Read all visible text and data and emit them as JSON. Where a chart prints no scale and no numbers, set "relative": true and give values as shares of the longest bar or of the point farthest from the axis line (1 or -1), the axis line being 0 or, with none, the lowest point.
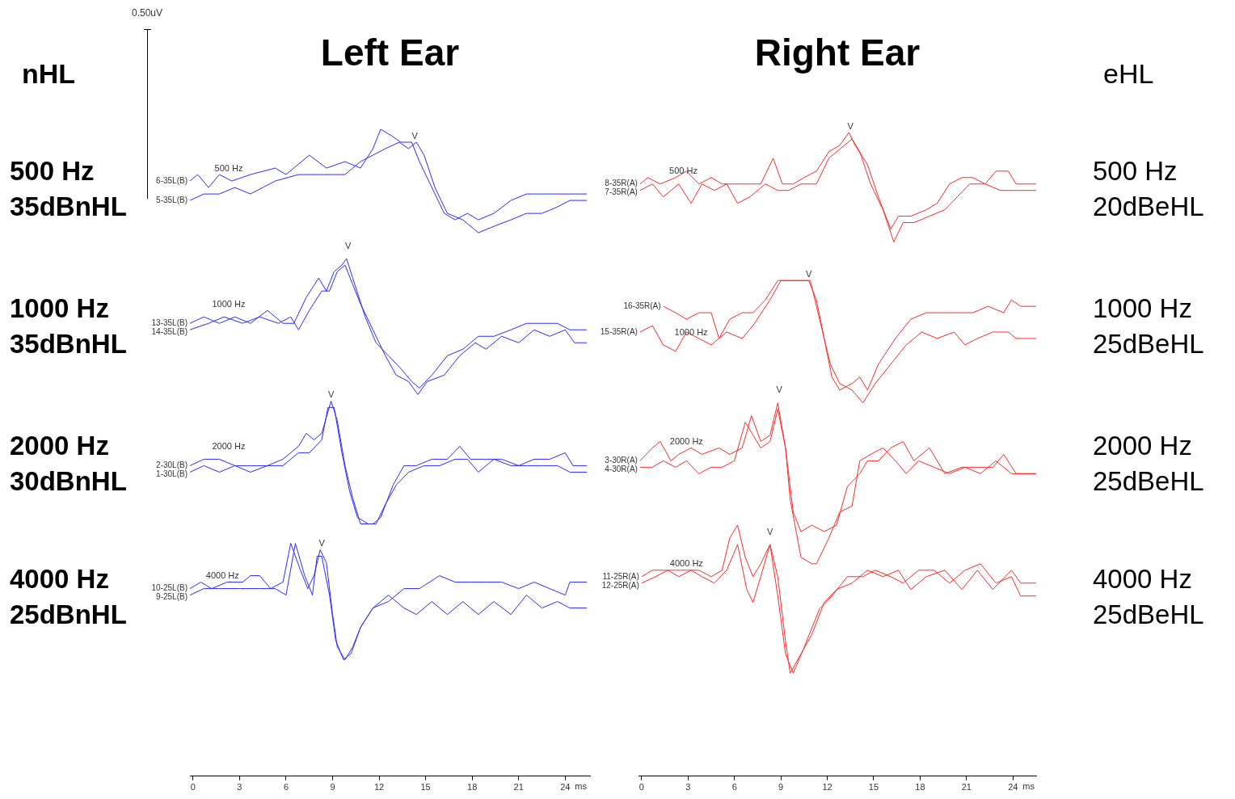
{
  "chart_data": [
    {
      "type": "line",
      "title": "Left Ear",
      "xlabel": "ms",
      "relative": true,
      "marker": "none",
      "xlim": [
        -0.2,
        25.6
      ],
      "xticks": [
        0,
        3,
        6,
        9,
        12,
        15,
        18,
        21,
        24
      ],
      "annotations": [
        "0.50uV",
        "nHL",
        "500 Hz",
        "35dBnHL",
        "1000 Hz",
        "35dBnHL",
        "2000 Hz",
        "30dBnHL",
        "4000 Hz",
        "25dBnHL",
        "500 Hz",
        "V",
        "1000 Hz",
        "V",
        "2000 Hz",
        "V",
        "4000 Hz",
        "V"
      ],
      "series": [
        {
          "name": "6-35L(B)",
          "color": "#2b2bff",
          "x": [
            -0.2,
            0.3,
            1.0,
            1.7,
            2.5,
            3.7,
            5.3,
            6.0,
            7.5,
            8.6,
            9.8,
            10.8,
            11.6,
            12.1,
            12.8,
            13.4,
            14.1,
            14.6,
            15.4,
            16.2,
            16.9,
            17.7,
            18.4,
            19.4,
            20.5,
            21.5,
            22.5,
            23.5,
            24.3,
            25.4
          ],
          "values": [
            0.92,
            0.93,
            0.91,
            0.93,
            0.92,
            0.93,
            0.94,
            0.93,
            0.96,
            0.94,
            0.95,
            0.94,
            0.97,
            1.0,
            0.99,
            0.98,
            0.98,
            0.95,
            0.91,
            0.87,
            0.86,
            0.87,
            0.86,
            0.87,
            0.89,
            0.9,
            0.9,
            0.9,
            0.9,
            0.9
          ]
        },
        {
          "name": "5-35L(B)",
          "color": "#2b2bff",
          "x": [
            -0.2,
            0.7,
            1.7,
            2.7,
            3.7,
            5.3,
            6.8,
            8.1,
            9.1,
            9.8,
            10.8,
            11.6,
            12.4,
            13.3,
            13.9,
            14.4,
            14.9,
            15.6,
            16.4,
            17.4,
            18.4,
            19.4,
            20.5,
            21.5,
            22.5,
            23.5,
            24.3,
            25.4
          ],
          "values": [
            0.89,
            0.9,
            0.9,
            0.91,
            0.9,
            0.92,
            0.93,
            0.93,
            0.93,
            0.93,
            0.95,
            0.96,
            0.97,
            0.98,
            0.97,
            0.98,
            0.96,
            0.91,
            0.87,
            0.86,
            0.84,
            0.85,
            0.86,
            0.87,
            0.87,
            0.88,
            0.89,
            0.89
          ]
        },
        {
          "name": "13-35L(B)",
          "color": "#2b2bff",
          "x": [
            -0.2,
            0.7,
            1.7,
            2.7,
            3.7,
            4.8,
            5.8,
            6.5,
            7.3,
            8.1,
            8.6,
            9.1,
            9.6,
            9.9,
            10.3,
            11.1,
            11.8,
            12.6,
            13.4,
            14.1,
            14.6,
            15.4,
            16.4,
            17.4,
            18.4,
            19.4,
            20.5,
            21.5,
            22.5,
            23.5,
            24.3,
            25.4
          ],
          "values": [
            0.7,
            0.71,
            0.7,
            0.71,
            0.7,
            0.72,
            0.7,
            0.7,
            0.74,
            0.77,
            0.75,
            0.78,
            0.79,
            0.8,
            0.77,
            0.71,
            0.67,
            0.65,
            0.63,
            0.61,
            0.6,
            0.62,
            0.65,
            0.66,
            0.68,
            0.68,
            0.69,
            0.7,
            0.7,
            0.7,
            0.69,
            0.69
          ]
        },
        {
          "name": "14-35L(B)",
          "color": "#2b2bff",
          "x": [
            -0.2,
            1.0,
            2.0,
            3.2,
            4.3,
            5.5,
            6.3,
            6.8,
            7.5,
            8.3,
            8.8,
            9.3,
            9.8,
            10.3,
            10.8,
            11.6,
            12.4,
            13.1,
            13.9,
            14.5,
            15.1,
            16.2,
            17.2,
            18.2,
            18.9,
            19.9,
            21.0,
            22.0,
            23.0,
            24.0,
            24.6,
            25.4
          ],
          "values": [
            0.69,
            0.7,
            0.71,
            0.7,
            0.71,
            0.7,
            0.71,
            0.69,
            0.72,
            0.75,
            0.75,
            0.78,
            0.79,
            0.76,
            0.73,
            0.69,
            0.65,
            0.62,
            0.61,
            0.59,
            0.61,
            0.62,
            0.65,
            0.67,
            0.66,
            0.68,
            0.67,
            0.69,
            0.68,
            0.69,
            0.67,
            0.67
          ]
        },
        {
          "name": "2-30L(B)",
          "color": "#2b2bff",
          "x": [
            -0.2,
            0.7,
            1.7,
            2.7,
            3.7,
            4.8,
            5.8,
            6.8,
            7.3,
            7.8,
            8.3,
            8.9,
            9.3,
            9.8,
            10.3,
            10.8,
            11.6,
            12.1,
            12.9,
            13.6,
            14.4,
            15.4,
            16.4,
            17.2,
            17.9,
            18.9,
            19.9,
            21.0,
            22.0,
            23.0,
            24.0,
            24.5,
            25.4
          ],
          "values": [
            0.48,
            0.49,
            0.49,
            0.48,
            0.48,
            0.48,
            0.49,
            0.51,
            0.53,
            0.52,
            0.53,
            0.58,
            0.55,
            0.48,
            0.43,
            0.39,
            0.39,
            0.4,
            0.45,
            0.48,
            0.48,
            0.49,
            0.49,
            0.51,
            0.49,
            0.49,
            0.49,
            0.48,
            0.49,
            0.49,
            0.5,
            0.48,
            0.48
          ]
        },
        {
          "name": "1-30L(B)",
          "color": "#2b2bff",
          "x": [
            -0.2,
            0.7,
            1.7,
            2.7,
            3.7,
            4.8,
            5.8,
            6.8,
            7.5,
            8.3,
            8.7,
            9.1,
            9.6,
            10.1,
            10.6,
            11.3,
            11.8,
            12.4,
            13.1,
            13.9,
            14.9,
            15.9,
            16.9,
            17.7,
            18.4,
            19.4,
            20.5,
            21.5,
            22.5,
            23.5,
            24.3,
            25.4
          ],
          "values": [
            0.47,
            0.48,
            0.47,
            0.48,
            0.47,
            0.48,
            0.48,
            0.5,
            0.5,
            0.52,
            0.57,
            0.57,
            0.5,
            0.44,
            0.4,
            0.39,
            0.39,
            0.42,
            0.45,
            0.47,
            0.48,
            0.48,
            0.49,
            0.49,
            0.47,
            0.49,
            0.48,
            0.48,
            0.48,
            0.48,
            0.47,
            0.47
          ]
        },
        {
          "name": "10-25L(B)",
          "color": "#2b2bff",
          "x": [
            -0.2,
            0.5,
            1.2,
            2.2,
            3.2,
            3.7,
            4.3,
            5.0,
            5.8,
            6.3,
            6.9,
            7.4,
            7.8,
            8.2,
            8.6,
            9.0,
            9.3,
            9.8,
            10.3,
            10.8,
            11.6,
            12.6,
            13.6,
            14.6,
            15.9,
            16.9,
            17.9,
            18.9,
            19.9,
            21.0,
            22.0,
            23.0,
            24.0,
            24.3,
            25.4
          ],
          "values": [
            0.29,
            0.3,
            0.29,
            0.3,
            0.3,
            0.31,
            0.31,
            0.29,
            0.3,
            0.36,
            0.32,
            0.29,
            0.31,
            0.35,
            0.33,
            0.25,
            0.2,
            0.18,
            0.2,
            0.23,
            0.26,
            0.27,
            0.29,
            0.29,
            0.31,
            0.3,
            0.3,
            0.3,
            0.3,
            0.29,
            0.3,
            0.29,
            0.28,
            0.3,
            0.3
          ]
        },
        {
          "name": "9-25L(B)",
          "color": "#2b2bff",
          "x": [
            -0.2,
            0.7,
            1.7,
            3.0,
            4.3,
            5.3,
            6.0,
            6.6,
            7.2,
            7.7,
            8.0,
            8.3,
            8.8,
            9.2,
            9.7,
            10.2,
            10.8,
            11.6,
            12.6,
            13.6,
            14.4,
            15.4,
            16.4,
            17.4,
            18.4,
            19.4,
            20.5,
            21.5,
            22.5,
            23.5,
            24.3,
            25.4
          ],
          "values": [
            0.28,
            0.29,
            0.29,
            0.29,
            0.29,
            0.29,
            0.28,
            0.36,
            0.31,
            0.28,
            0.34,
            0.34,
            0.28,
            0.21,
            0.18,
            0.19,
            0.23,
            0.26,
            0.28,
            0.26,
            0.25,
            0.27,
            0.25,
            0.27,
            0.25,
            0.27,
            0.25,
            0.28,
            0.26,
            0.27,
            0.26,
            0.26
          ]
        }
      ]
    },
    {
      "type": "line",
      "title": "Right Ear",
      "xlabel": "ms",
      "relative": true,
      "marker": "none",
      "xlim": [
        -0.2,
        25.5
      ],
      "xticks": [
        0,
        3,
        6,
        9,
        12,
        15,
        18,
        21,
        24
      ],
      "annotations": [
        "eHL",
        "500 Hz",
        "20dBeHL",
        "1000 Hz",
        "25dBeHL",
        "2000 Hz",
        "25dBeHL",
        "4000 Hz",
        "25dBeHL",
        "500 Hz",
        "V",
        "1000 Hz",
        "V",
        "2000 Hz",
        "V",
        "4000 Hz",
        "V"
      ],
      "series": [
        {
          "name": "8-35R(A)",
          "color": "#ff2a2a",
          "x": [
            -0.1,
            0.4,
            1.2,
            2.2,
            2.9,
            3.7,
            4.5,
            5.2,
            6.0,
            6.7,
            7.7,
            8.5,
            9.1,
            9.8,
            10.5,
            11.3,
            12.1,
            12.8,
            13.4,
            13.8,
            14.6,
            15.3,
            16.1,
            16.6,
            17.4,
            18.4,
            19.1,
            19.9,
            20.7,
            21.4,
            22.2,
            22.9,
            23.7,
            24.2,
            25.5
          ],
          "values": [
            0.92,
            0.93,
            0.92,
            0.93,
            0.94,
            0.92,
            0.93,
            0.92,
            0.92,
            0.92,
            0.92,
            0.96,
            0.92,
            0.92,
            0.93,
            0.94,
            0.97,
            0.98,
            1.0,
            0.98,
            0.95,
            0.9,
            0.85,
            0.87,
            0.87,
            0.88,
            0.89,
            0.92,
            0.93,
            0.93,
            0.92,
            0.94,
            0.94,
            0.92,
            0.92
          ]
        },
        {
          "name": "7-35R(A)",
          "color": "#ff2a2a",
          "x": [
            -0.1,
            0.7,
            1.4,
            2.4,
            3.2,
            3.9,
            4.7,
            5.5,
            6.2,
            7.0,
            8.0,
            8.8,
            9.5,
            10.3,
            11.3,
            12.1,
            13.1,
            13.6,
            14.1,
            14.8,
            15.6,
            16.3,
            16.9,
            17.6,
            18.6,
            19.6,
            20.4,
            21.2,
            22.2,
            23.2,
            23.9,
            24.5,
            25.5
          ],
          "values": [
            0.91,
            0.92,
            0.9,
            0.92,
            0.89,
            0.92,
            0.91,
            0.92,
            0.89,
            0.9,
            0.92,
            0.91,
            0.91,
            0.92,
            0.92,
            0.96,
            0.98,
            0.99,
            0.97,
            0.92,
            0.88,
            0.83,
            0.86,
            0.86,
            0.87,
            0.88,
            0.9,
            0.92,
            0.92,
            0.91,
            0.91,
            0.91,
            0.91
          ]
        },
        {
          "name": "16-35R(A)",
          "color": "#ff2a2a",
          "x": [
            1.4,
            2.2,
            2.9,
            3.7,
            4.5,
            5.0,
            5.7,
            6.5,
            7.2,
            8.0,
            8.8,
            9.3,
            10.0,
            10.8,
            11.3,
            11.8,
            12.3,
            12.8,
            13.6,
            14.1,
            14.6,
            15.3,
            16.4,
            17.4,
            18.4,
            19.4,
            20.4,
            21.4,
            22.4,
            23.4,
            23.9,
            24.5,
            25.5
          ],
          "values": [
            0.73,
            0.72,
            0.71,
            0.72,
            0.72,
            0.68,
            0.71,
            0.72,
            0.72,
            0.74,
            0.77,
            0.77,
            0.77,
            0.77,
            0.74,
            0.68,
            0.62,
            0.6,
            0.61,
            0.62,
            0.6,
            0.64,
            0.68,
            0.71,
            0.72,
            0.72,
            0.72,
            0.72,
            0.73,
            0.72,
            0.74,
            0.73,
            0.73
          ]
        },
        {
          "name": "15-35R(A)",
          "color": "#ff2a2a",
          "x": [
            -0.1,
            0.7,
            1.4,
            2.2,
            2.9,
            3.7,
            4.5,
            5.5,
            6.5,
            7.2,
            8.3,
            9.0,
            9.8,
            10.5,
            10.9,
            11.5,
            12.2,
            12.8,
            13.6,
            14.3,
            15.1,
            16.1,
            17.1,
            18.1,
            19.1,
            20.2,
            20.9,
            21.7,
            22.7,
            23.7,
            24.2,
            25.5
          ],
          "values": [
            0.69,
            0.7,
            0.67,
            0.66,
            0.69,
            0.68,
            0.67,
            0.69,
            0.68,
            0.7,
            0.74,
            0.77,
            0.77,
            0.77,
            0.77,
            0.71,
            0.64,
            0.61,
            0.6,
            0.58,
            0.61,
            0.64,
            0.67,
            0.69,
            0.68,
            0.69,
            0.67,
            0.68,
            0.69,
            0.69,
            0.68,
            0.68
          ]
        },
        {
          "name": "3-30R(A)",
          "color": "#ff2a2a",
          "x": [
            -0.1,
            0.7,
            1.2,
            1.9,
            2.4,
            3.2,
            3.9,
            5.0,
            5.7,
            6.5,
            7.1,
            7.7,
            8.3,
            8.8,
            9.3,
            9.8,
            10.3,
            11.0,
            11.8,
            12.6,
            13.3,
            14.1,
            14.6,
            15.3,
            16.1,
            16.9,
            17.6,
            18.6,
            19.6,
            20.7,
            21.7,
            22.7,
            23.4,
            24.2,
            25.5
          ],
          "values": [
            0.49,
            0.51,
            0.52,
            0.49,
            0.5,
            0.51,
            0.5,
            0.51,
            0.5,
            0.51,
            0.56,
            0.52,
            0.53,
            0.58,
            0.51,
            0.41,
            0.38,
            0.39,
            0.38,
            0.39,
            0.45,
            0.47,
            0.49,
            0.49,
            0.51,
            0.52,
            0.49,
            0.51,
            0.47,
            0.48,
            0.48,
            0.48,
            0.5,
            0.47,
            0.47
          ]
        },
        {
          "name": "4-30R(A)",
          "color": "#ff2a2a",
          "x": [
            -0.1,
            0.7,
            1.4,
            2.2,
            2.9,
            3.7,
            4.5,
            5.2,
            6.0,
            6.7,
            7.2,
            7.7,
            8.3,
            8.8,
            9.3,
            9.6,
            10.3,
            11.0,
            11.3,
            12.1,
            12.8,
            13.6,
            14.1,
            14.8,
            15.6,
            16.4,
            17.1,
            17.9,
            18.9,
            19.9,
            20.9,
            21.9,
            22.9,
            23.9,
            24.5,
            25.5
          ],
          "values": [
            0.48,
            0.48,
            0.49,
            0.48,
            0.49,
            0.47,
            0.48,
            0.48,
            0.49,
            0.55,
            0.53,
            0.51,
            0.52,
            0.57,
            0.51,
            0.43,
            0.34,
            0.33,
            0.33,
            0.37,
            0.41,
            0.42,
            0.49,
            0.5,
            0.51,
            0.49,
            0.47,
            0.49,
            0.48,
            0.47,
            0.48,
            0.47,
            0.49,
            0.47,
            0.47,
            0.47
          ]
        },
        {
          "name": "11-25R(A)",
          "color": "#ff2a2a",
          "x": [
            0,
            0.7,
            1.4,
            2.2,
            2.9,
            3.7,
            4.5,
            5.2,
            5.7,
            6.2,
            6.7,
            7.2,
            7.7,
            8.3,
            8.8,
            9.3,
            9.6,
            10.3,
            11.0,
            11.8,
            12.6,
            13.6,
            14.6,
            15.6,
            16.6,
            17.4,
            18.4,
            19.6,
            20.7,
            21.7,
            22.7,
            23.9,
            24.5,
            25.5
          ],
          "values": [
            0.31,
            0.32,
            0.32,
            0.32,
            0.32,
            0.32,
            0.31,
            0.32,
            0.37,
            0.39,
            0.34,
            0.31,
            0.33,
            0.36,
            0.31,
            0.21,
            0.16,
            0.19,
            0.22,
            0.27,
            0.29,
            0.3,
            0.32,
            0.31,
            0.32,
            0.29,
            0.31,
            0.32,
            0.29,
            0.32,
            0.29,
            0.32,
            0.3,
            0.3
          ]
        },
        {
          "name": "12-25R(A)",
          "color": "#ff2a2a",
          "x": [
            0,
            0.9,
            1.7,
            2.4,
            3.2,
            3.9,
            4.7,
            5.5,
            6.2,
            6.8,
            7.2,
            7.7,
            8.3,
            8.8,
            9.3,
            9.8,
            10.5,
            11.5,
            12.3,
            13.3,
            14.3,
            15.1,
            16.1,
            16.9,
            17.9,
            18.9,
            19.9,
            20.9,
            21.9,
            22.9,
            23.9,
            24.5,
            25.5
          ],
          "values": [
            0.3,
            0.31,
            0.32,
            0.31,
            0.32,
            0.31,
            0.3,
            0.32,
            0.36,
            0.29,
            0.27,
            0.31,
            0.36,
            0.28,
            0.19,
            0.16,
            0.2,
            0.26,
            0.28,
            0.31,
            0.31,
            0.32,
            0.31,
            0.3,
            0.32,
            0.32,
            0.3,
            0.32,
            0.33,
            0.3,
            0.31,
            0.28,
            0.28
          ]
        }
      ]
    }
  ]
}
